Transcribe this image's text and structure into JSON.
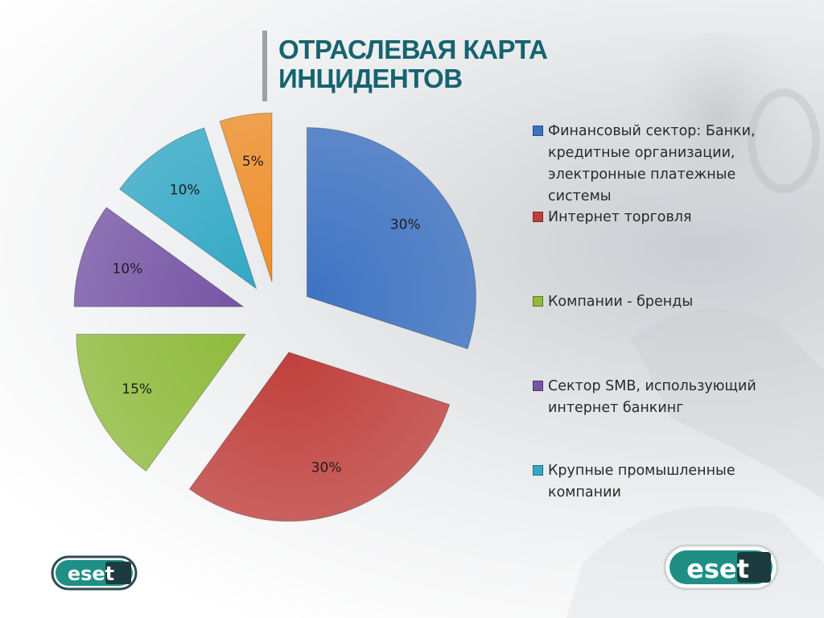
{
  "title": "ОТРАСЛЕВАЯ КАРТА ИНЦИДЕНТОВ",
  "brand_logo": {
    "text": "eset"
  },
  "chart_data": {
    "type": "pie",
    "series": [
      {
        "name": "Финансовый сектор: Банки, кредитные организации, электронные платежные системы",
        "value": 30,
        "label": "30%",
        "color": "#3e73c3"
      },
      {
        "name": "Интернет торговля",
        "value": 30,
        "label": "30%",
        "color": "#c0403c"
      },
      {
        "name": "Компании - бренды",
        "value": 15,
        "label": "15%",
        "color": "#8fbb3c"
      },
      {
        "name": "Сектор SMB, использующий интернет банкинг",
        "value": 10,
        "label": "10%",
        "color": "#7655a5"
      },
      {
        "name": "Крупные промышленные компании",
        "value": 10,
        "label": "10%",
        "color": "#33a9c6"
      },
      {
        "name": "",
        "value": 5,
        "label": "5%",
        "color": "#f08f2a"
      }
    ],
    "legend": "right",
    "exploded": true
  }
}
